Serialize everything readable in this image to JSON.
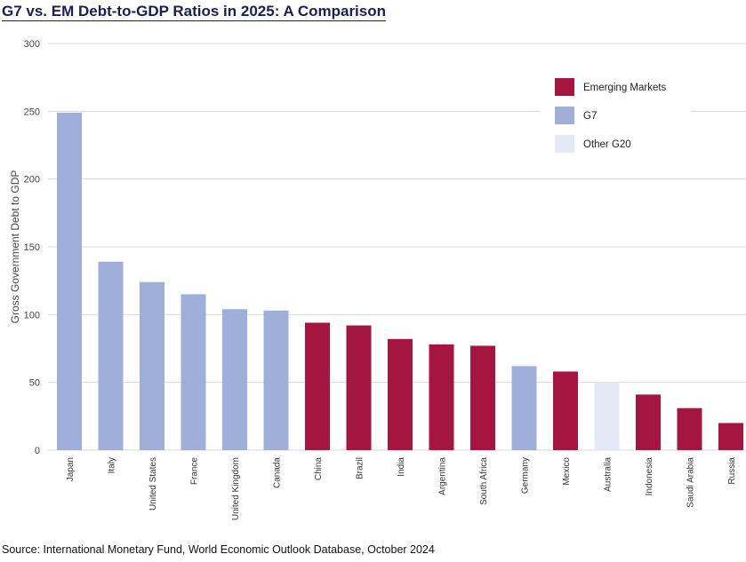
{
  "title": "G7 vs. EM Debt-to-GDP Ratios in 2025: A Comparison",
  "source": "Source: International Monetary Fund, World Economic Outlook Database, October 2024",
  "chart_data": {
    "type": "bar",
    "title": "G7 vs. EM Debt-to-GDP Ratios in 2025: A Comparison",
    "xlabel": "",
    "ylabel": "Gross Government Debt to GDP",
    "ylim": [
      0,
      300
    ],
    "yticks": [
      0,
      50,
      100,
      150,
      200,
      250,
      300
    ],
    "grid": true,
    "legend_position": "top-right",
    "categories": [
      "Japan",
      "Italy",
      "United States",
      "France",
      "United Kingdom",
      "Canada",
      "China",
      "Brazil",
      "India",
      "Argentina",
      "South Africa",
      "Germany",
      "Mexico",
      "Australia",
      "Indonesia",
      "Saudi Arabia",
      "Russia"
    ],
    "values": [
      249,
      139,
      124,
      115,
      104,
      103,
      94,
      92,
      82,
      78,
      77,
      62,
      58,
      50,
      41,
      31,
      20
    ],
    "groups": [
      "G7",
      "G7",
      "G7",
      "G7",
      "G7",
      "G7",
      "Emerging Markets",
      "Emerging Markets",
      "Emerging Markets",
      "Emerging Markets",
      "Emerging Markets",
      "G7",
      "Emerging Markets",
      "Other G20",
      "Emerging Markets",
      "Emerging Markets",
      "Emerging Markets"
    ],
    "legend": [
      {
        "name": "Emerging Markets",
        "color": "#a4153f"
      },
      {
        "name": "G7",
        "color": "#a0afd9"
      },
      {
        "name": "Other G20",
        "color": "#e3eaf3"
      }
    ]
  }
}
